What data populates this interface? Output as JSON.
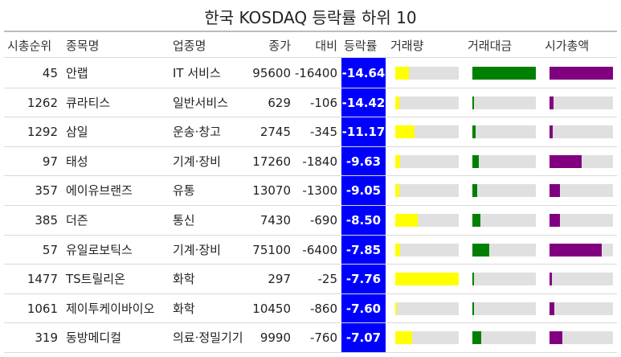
{
  "chart_data": {
    "type": "table",
    "title": "한국 KOSDAQ 등락률 하위 10",
    "columns": [
      "시총순위",
      "종목명",
      "업종명",
      "종가",
      "대비",
      "등락률",
      "거래량",
      "거래대금",
      "시가총액"
    ],
    "colors": {
      "change_bg": "#0000ff",
      "change_text": "#ffffff",
      "volume": "#ffff00",
      "trade_value": "#008000",
      "market_cap": "#800080",
      "track": "#e0e0e0"
    },
    "rows": [
      {
        "rank": "45",
        "name": "안랩",
        "sector": "IT 서비스",
        "close": "95600",
        "diff": "-16400",
        "change": "-14.64",
        "volume": 0.22,
        "trade_value": 1.0,
        "market_cap": 1.0
      },
      {
        "rank": "1262",
        "name": "큐라티스",
        "sector": "일반서비스",
        "close": "629",
        "diff": "-106",
        "change": "-14.42",
        "volume": 0.06,
        "trade_value": 0.02,
        "market_cap": 0.06
      },
      {
        "rank": "1292",
        "name": "삼일",
        "sector": "운송·창고",
        "close": "2745",
        "diff": "-345",
        "change": "-11.17",
        "volume": 0.31,
        "trade_value": 0.05,
        "market_cap": 0.05
      },
      {
        "rank": "97",
        "name": "태성",
        "sector": "기계·장비",
        "close": "17260",
        "diff": "-1840",
        "change": "-9.63",
        "volume": 0.08,
        "trade_value": 0.1,
        "market_cap": 0.5
      },
      {
        "rank": "357",
        "name": "에이유브랜즈",
        "sector": "유통",
        "close": "13070",
        "diff": "-1300",
        "change": "-9.05",
        "volume": 0.06,
        "trade_value": 0.07,
        "market_cap": 0.17
      },
      {
        "rank": "385",
        "name": "더즌",
        "sector": "통신",
        "close": "7430",
        "diff": "-690",
        "change": "-8.50",
        "volume": 0.36,
        "trade_value": 0.13,
        "market_cap": 0.16
      },
      {
        "rank": "57",
        "name": "유일로보틱스",
        "sector": "기계·장비",
        "close": "75100",
        "diff": "-6400",
        "change": "-7.85",
        "volume": 0.08,
        "trade_value": 0.26,
        "market_cap": 0.82
      },
      {
        "rank": "1477",
        "name": "TS트릴리온",
        "sector": "화학",
        "close": "297",
        "diff": "-25",
        "change": "-7.76",
        "volume": 1.0,
        "trade_value": 0.02,
        "market_cap": 0.04
      },
      {
        "rank": "1061",
        "name": "제이투케이바이오",
        "sector": "화학",
        "close": "10450",
        "diff": "-860",
        "change": "-7.60",
        "volume": 0.03,
        "trade_value": 0.02,
        "market_cap": 0.07
      },
      {
        "rank": "319",
        "name": "동방메디컬",
        "sector": "의료·정밀기기",
        "close": "9990",
        "diff": "-760",
        "change": "-7.07",
        "volume": 0.27,
        "trade_value": 0.14,
        "market_cap": 0.2
      }
    ]
  }
}
